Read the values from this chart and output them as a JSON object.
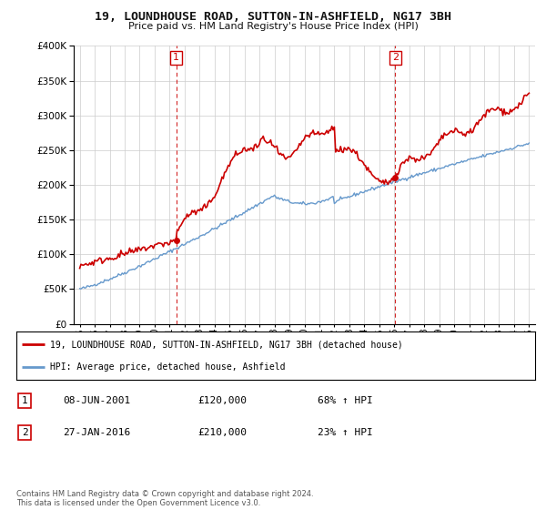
{
  "title": "19, LOUNDHOUSE ROAD, SUTTON-IN-ASHFIELD, NG17 3BH",
  "subtitle": "Price paid vs. HM Land Registry's House Price Index (HPI)",
  "legend_line1": "19, LOUNDHOUSE ROAD, SUTTON-IN-ASHFIELD, NG17 3BH (detached house)",
  "legend_line2": "HPI: Average price, detached house, Ashfield",
  "transaction1_label": "1",
  "transaction1_date": "08-JUN-2001",
  "transaction1_price": "£120,000",
  "transaction1_hpi": "68% ↑ HPI",
  "transaction2_label": "2",
  "transaction2_date": "27-JAN-2016",
  "transaction2_price": "£210,000",
  "transaction2_hpi": "23% ↑ HPI",
  "footnote": "Contains HM Land Registry data © Crown copyright and database right 2024.\nThis data is licensed under the Open Government Licence v3.0.",
  "sale_color": "#cc0000",
  "hpi_color": "#6699cc",
  "dashed_line_color": "#cc0000",
  "background_color": "#ffffff",
  "grid_color": "#cccccc",
  "ylim": [
    0,
    400000
  ],
  "yticks": [
    0,
    50000,
    100000,
    150000,
    200000,
    250000,
    300000,
    350000,
    400000
  ],
  "sale1_x": 2001.44,
  "sale1_y": 120000,
  "sale2_x": 2016.07,
  "sale2_y": 210000,
  "xlim_left": 1994.6,
  "xlim_right": 2025.4
}
